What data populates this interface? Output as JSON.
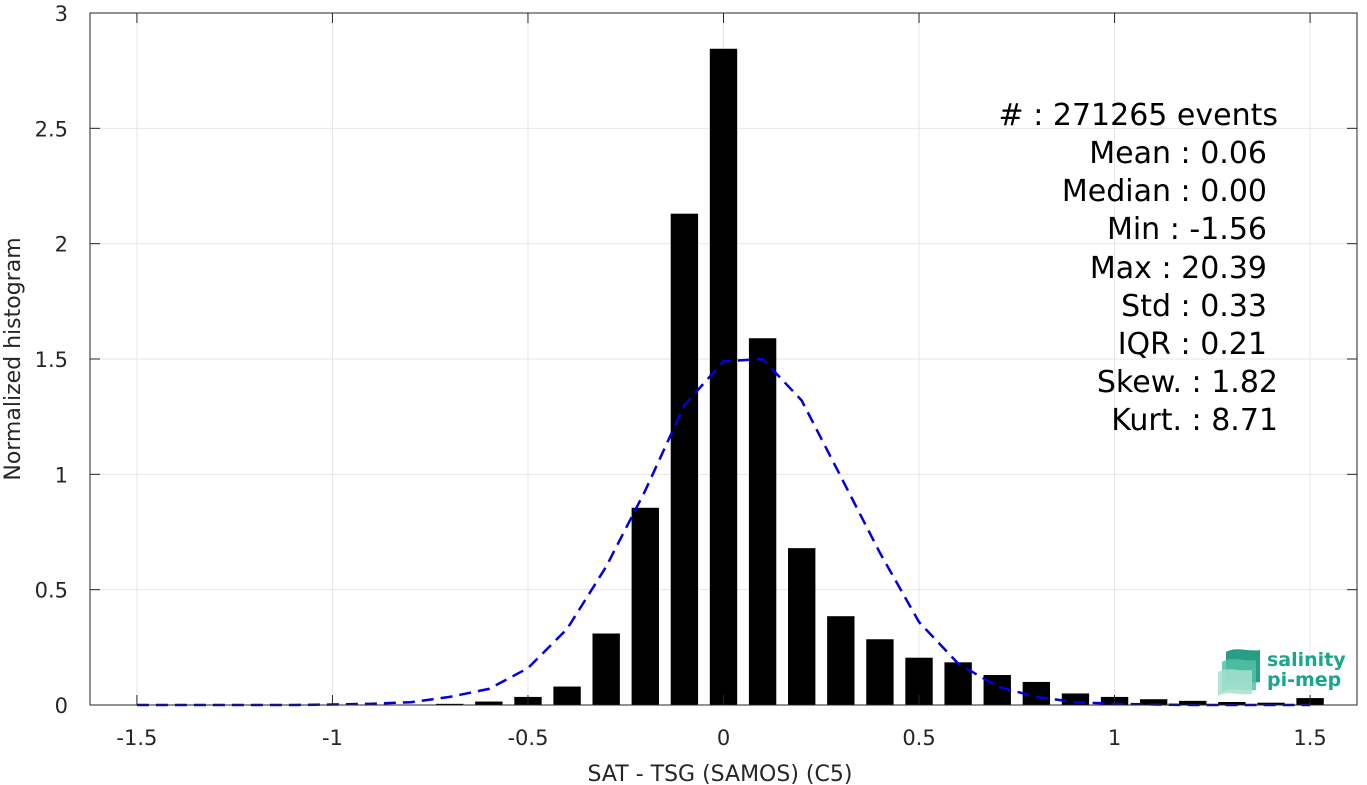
{
  "chart_data": {
    "type": "bar",
    "title": "",
    "xlabel": "SAT - TSG (SAMOS) (C5)",
    "ylabel": "Normalized histogram",
    "xlim": [
      -1.62,
      1.62
    ],
    "ylim": [
      0,
      3
    ],
    "grid": true,
    "bar_width": 0.07,
    "x_ticks": [
      -1.5,
      -1,
      -0.5,
      0,
      0.5,
      1,
      1.5
    ],
    "x_tick_labels": [
      "-1.5",
      "-1",
      "-0.5",
      "0",
      "0.5",
      "1",
      "1.5"
    ],
    "y_ticks": [
      0,
      0.5,
      1,
      1.5,
      2,
      2.5,
      3
    ],
    "y_tick_labels": [
      "0",
      "0.5",
      "1",
      "1.5",
      "2",
      "2.5",
      "3"
    ],
    "series": [
      {
        "kind": "bar",
        "color": "#000000",
        "x": [
          -1.5,
          -1.4,
          -1.3,
          -1.2,
          -1.1,
          -1.0,
          -0.9,
          -0.8,
          -0.7,
          -0.6,
          -0.5,
          -0.4,
          -0.3,
          -0.2,
          -0.1,
          0.0,
          0.1,
          0.2,
          0.3,
          0.4,
          0.5,
          0.6,
          0.7,
          0.8,
          0.9,
          1.0,
          1.1,
          1.2,
          1.3,
          1.4,
          1.5
        ],
        "values": [
          0,
          0,
          0,
          0,
          0,
          0,
          0.001,
          0.002,
          0.005,
          0.015,
          0.035,
          0.08,
          0.31,
          0.855,
          2.13,
          2.845,
          1.59,
          0.68,
          0.385,
          0.285,
          0.205,
          0.185,
          0.13,
          0.1,
          0.05,
          0.035,
          0.025,
          0.018,
          0.013,
          0.01,
          0.03
        ]
      },
      {
        "kind": "line",
        "style": "dashed",
        "color": "#0000dd",
        "x": [
          -1.5,
          -1.4,
          -1.3,
          -1.2,
          -1.1,
          -1.0,
          -0.9,
          -0.8,
          -0.7,
          -0.6,
          -0.5,
          -0.4,
          -0.3,
          -0.2,
          -0.1,
          0.0,
          0.1,
          0.2,
          0.3,
          0.4,
          0.5,
          0.6,
          0.7,
          0.8,
          0.9,
          1.0,
          1.1,
          1.2,
          1.3,
          1.4,
          1.5
        ],
        "values": [
          0,
          0,
          0,
          0,
          0,
          0.002,
          0.005,
          0.012,
          0.035,
          0.07,
          0.16,
          0.33,
          0.6,
          0.93,
          1.3,
          1.49,
          1.5,
          1.32,
          0.99,
          0.66,
          0.36,
          0.18,
          0.08,
          0.035,
          0.012,
          0.005,
          0.002,
          0,
          0,
          0,
          0
        ]
      }
    ],
    "annotations": [
      "#  : 271265 events",
      "Mean : 0.06",
      "Median : 0.00",
      "Min : -1.56",
      "Max : 20.39",
      "Std : 0.33",
      "IQR : 0.21",
      "Skew. : 1.82",
      "Kurt. : 8.71"
    ]
  },
  "logo": {
    "line1": "salinity",
    "line2": "pi-mep"
  }
}
